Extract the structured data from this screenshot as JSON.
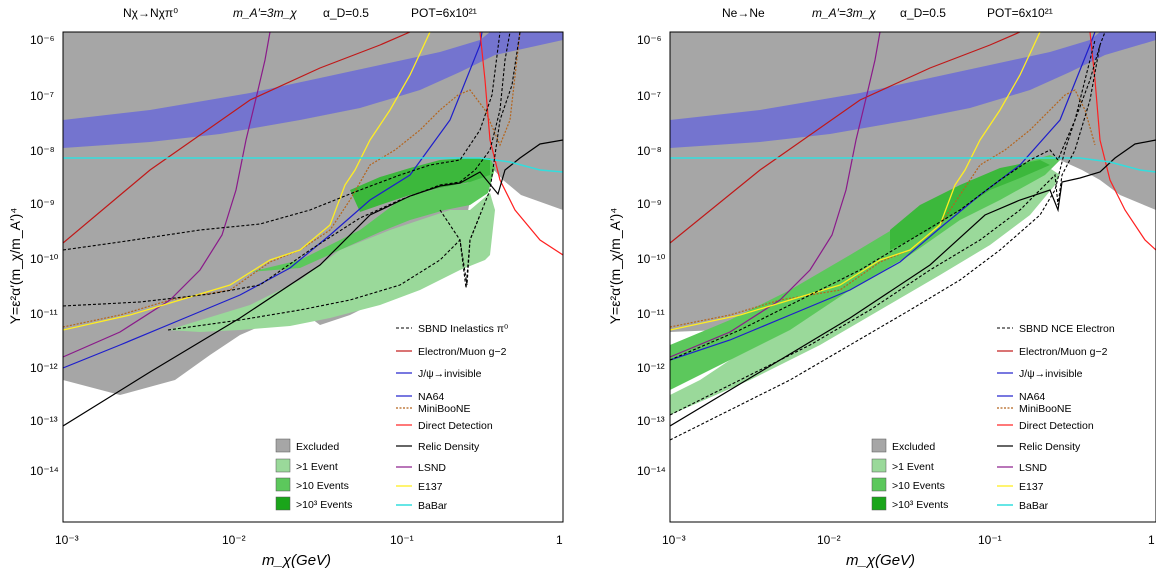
{
  "chart_data": [
    {
      "type": "area",
      "header": {
        "process": "Nχ→Nχπ⁰",
        "mass_ratio": "m_A′=3m_χ",
        "alpha_d": "α_D=0.5",
        "pot": "POT=6x10²¹"
      },
      "xlabel": "m_χ(GeV)",
      "ylabel": "Y=ε²α′(m_χ/m_A′)⁴",
      "xlim": [
        0.001,
        1
      ],
      "ylim": [
        1e-15,
        1e-06
      ],
      "xscale": "log",
      "yscale": "log",
      "xtick_labels": [
        "10⁻³",
        "10⁻²",
        "10⁻¹",
        "1"
      ],
      "ytick_labels": [
        "10⁻¹⁴",
        "10⁻¹³",
        "10⁻¹²",
        "10⁻¹¹",
        "10⁻¹⁰",
        "10⁻⁹",
        "10⁻⁸",
        "10⁻⁷",
        "10⁻⁶"
      ],
      "legend_left": [
        "Excluded",
        ">1 Event",
        ">10 Events",
        ">10³ Events"
      ],
      "legend_right": [
        "SBND Inelastics π⁰",
        "Electron/Muon g−2",
        "J/ψ→invisible",
        "NA64",
        "MiniBooNE",
        "Direct Detection",
        "Relic Density",
        "LSND",
        "E137",
        "BaBar"
      ],
      "legend_placement": "bottom-right",
      "colors": {
        "excluded": "#a6a6a6",
        "event1": "#9ad99a",
        "event10": "#5cc85c",
        "event1000": "#1aa51a",
        "muon_band": "#6b6bd6",
        "g2": "#c01818",
        "jpsi": "#1e1ecc",
        "na64": "#1e1ecc",
        "miniboone": "#b5651d",
        "direct": "#ff2020",
        "relic": "#000000",
        "lsnd": "#8a1a8a",
        "e137": "#ffee22",
        "babar": "#33dddd"
      },
      "series": [
        {
          "name": "Electron/Muon g−2",
          "x": [
            0.001,
            0.01,
            0.1,
            0.3
          ],
          "y": [
            1.6e-10,
            1e-08,
            7e-07,
            1e-06
          ]
        },
        {
          "name": "J/ψ→invisible",
          "x": [
            0.001,
            0.01,
            0.1,
            0.3
          ],
          "y": [
            1e-12,
            6e-11,
            4e-09,
            1e-06
          ]
        },
        {
          "name": "NA64",
          "x": [
            0.001,
            0.003,
            0.01,
            0.03,
            0.1,
            0.3
          ],
          "y": [
            1e-12,
            5e-12,
            5e-11,
            4e-10,
            4e-09,
            1e-06
          ]
        },
        {
          "name": "MiniBooNE",
          "x": [
            0.001,
            0.002,
            0.005,
            0.01,
            0.02,
            0.04,
            0.1,
            0.25,
            0.35
          ],
          "y": [
            6e-12,
            6e-12,
            1.4e-11,
            2.2e-11,
            7e-11,
            3e-09,
            1e-08,
            1e-08,
            1e-06
          ]
        },
        {
          "name": "Direct Detection",
          "x": [
            0.35,
            0.4,
            0.5,
            0.6,
            1.0
          ],
          "y": [
            1e-06,
            1e-07,
            1e-08,
            1e-09,
            1e-10
          ]
        },
        {
          "name": "Relic Density",
          "x": [
            0.001,
            0.01,
            0.1,
            0.3,
            0.5,
            1.0
          ],
          "y": [
            8.5e-14,
            6e-12,
            5e-10,
            2e-09,
            6e-09,
            1e-08
          ]
        },
        {
          "name": "LSND",
          "x": [
            0.001,
            0.005,
            0.01,
            0.02,
            0.03,
            0.04
          ],
          "y": [
            1.4e-12,
            8e-11,
            1e-09,
            2e-08,
            1e-07,
            1e-06
          ]
        },
        {
          "name": "E137",
          "x": [
            0.001,
            0.005,
            0.01,
            0.02,
            0.03,
            0.045,
            0.06,
            0.1
          ],
          "y": [
            5e-12,
            1.4e-11,
            2e-11,
            7e-11,
            4e-10,
            5e-09,
            3e-08,
            1e-06
          ]
        },
        {
          "name": "BaBar",
          "x": [
            0.001,
            0.3,
            0.5,
            0.8,
            1.0
          ],
          "y": [
            6e-09,
            6e-09,
            4.5e-09,
            3.5e-09,
            3.5e-09
          ]
        },
        {
          "name": "SBND Inelastics π⁰",
          "x": [
            0.001,
            0.01,
            0.05,
            0.1,
            0.2,
            0.25,
            0.3,
            0.35
          ],
          "y": [
            1.3e-11,
            1.5e-11,
            5e-11,
            1e-10,
            5e-10,
            2.5e-11,
            2e-10,
            1e-06
          ]
        }
      ]
    },
    {
      "type": "area",
      "header": {
        "process": "Ne→Ne",
        "mass_ratio": "m_A′=3m_χ",
        "alpha_d": "α_D=0.5",
        "pot": "POT=6x10²¹"
      },
      "xlabel": "m_χ(GeV)",
      "ylabel": "Y=ε²α′(m_χ/m_A′)⁴",
      "xlim": [
        0.001,
        1
      ],
      "ylim": [
        1e-15,
        1e-06
      ],
      "xscale": "log",
      "yscale": "log",
      "xtick_labels": [
        "10⁻³",
        "10⁻²",
        "10⁻¹",
        "1"
      ],
      "ytick_labels": [
        "10⁻¹⁴",
        "10⁻¹³",
        "10⁻¹²",
        "10⁻¹¹",
        "10⁻¹⁰",
        "10⁻⁹",
        "10⁻⁸",
        "10⁻⁷",
        "10⁻⁶"
      ],
      "legend_left": [
        "Excluded",
        ">1 Event",
        ">10 Events",
        ">10³ Events"
      ],
      "legend_right": [
        "SBND NCE Electron",
        "Electron/Muon g−2",
        "J/ψ→invisible",
        "NA64",
        "MiniBooNE",
        "Direct Detection",
        "Relic Density",
        "LSND",
        "E137",
        "BaBar"
      ],
      "legend_placement": "bottom-right",
      "series": [
        {
          "name": "SBND NCE Electron",
          "x": [
            0.001,
            0.01,
            0.05,
            0.1,
            0.25,
            0.3
          ],
          "y": [
            1.5e-13,
            5e-12,
            2e-10,
            1e-09,
            1e-09,
            1e-06
          ]
        },
        {
          "name": "Relic Density",
          "x": [
            0.001,
            0.01,
            0.1,
            0.3,
            0.5,
            1.0
          ],
          "y": [
            8.5e-14,
            6e-12,
            5e-10,
            2e-09,
            6e-09,
            1e-08
          ]
        }
      ]
    }
  ]
}
